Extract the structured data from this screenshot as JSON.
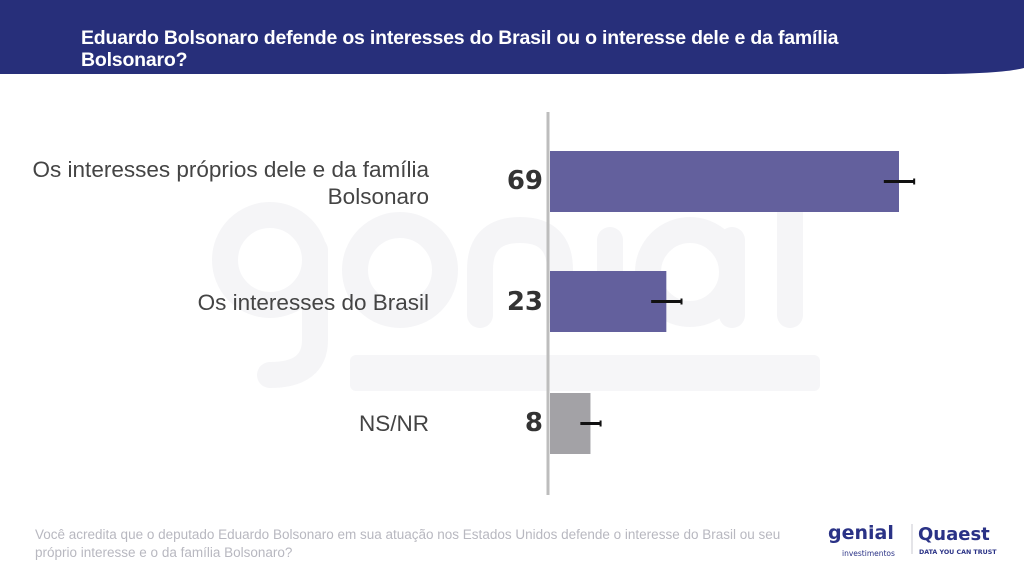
{
  "header": {
    "title": "Eduardo Bolsonaro defende os interesses do Brasil ou o interesse dele e da família Bolsonaro?"
  },
  "colors": {
    "header_bg": "#272f7a",
    "bar_primary": "#63609d",
    "bar_neutral": "#a3a2a6",
    "axis": "#bdbdbd",
    "error_bar": "#111111"
  },
  "chart_data": {
    "type": "bar",
    "orientation": "horizontal",
    "categories": [
      "Os interesses próprios dele e da família Bolsonaro",
      "Os interesses do Brasil",
      "NS/NR"
    ],
    "values": [
      69,
      23,
      8
    ],
    "value_labels": [
      "69",
      "23",
      "8"
    ],
    "error_margin": [
      3,
      3,
      2
    ],
    "bar_colors": [
      "#63609d",
      "#63609d",
      "#a3a2a6"
    ],
    "xlim": [
      0,
      70
    ],
    "grid": false,
    "title": "Eduardo Bolsonaro defende os interesses do Brasil ou o interesse dele e da família Bolsonaro?"
  },
  "footnote": "Você acredita que o deputado Eduardo Bolsonaro em sua atuação nos Estados Unidos defende o interesse do Brasil ou seu próprio interesse e o da família Bolsonaro?",
  "watermark": {
    "line1": "genial",
    "line2": "investimentos"
  },
  "logos": {
    "genial": "genial",
    "genial_sub": "investimentos",
    "quaest": "Quaest",
    "quaest_tagline": "DATA YOU CAN TRUST"
  }
}
